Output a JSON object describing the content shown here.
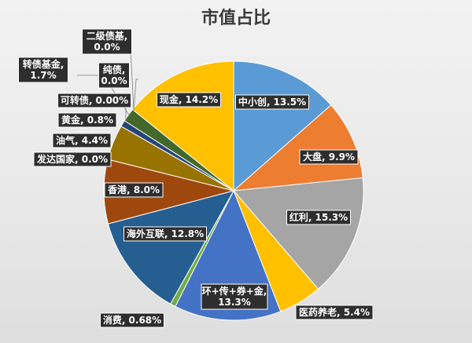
{
  "chart_data": {
    "type": "pie",
    "title": "市值占比",
    "slices": [
      {
        "name": "中小创",
        "label": "中小创, 13.5%",
        "value": 13.5,
        "color": "#5b9bd5"
      },
      {
        "name": "大盘",
        "label": "大盘, 9.9%",
        "value": 9.9,
        "color": "#ed7d31"
      },
      {
        "name": "红利",
        "label": "红利, 15.3%",
        "value": 15.3,
        "color": "#a5a5a5"
      },
      {
        "name": "医药养老",
        "label": "医药养老, 5.4%",
        "value": 5.4,
        "color": "#ffc000"
      },
      {
        "name": "环+传+券+金",
        "label": [
          "环+传+券+金,",
          "13.3%"
        ],
        "value": 13.3,
        "color": "#4472c4"
      },
      {
        "name": "消费",
        "label": "消费, 0.68%",
        "value": 0.68,
        "color": "#70ad47"
      },
      {
        "name": "海外互联",
        "label": "海外互联, 12.8%",
        "value": 12.8,
        "color": "#255e91"
      },
      {
        "name": "香港",
        "label": "香港, 8.0%",
        "value": 8.0,
        "color": "#9e480e"
      },
      {
        "name": "发达国家",
        "label": "发达国家, 0.0%",
        "value": 0.0,
        "color": "#636363"
      },
      {
        "name": "油气",
        "label": "油气, 4.4%",
        "value": 4.4,
        "color": "#997300"
      },
      {
        "name": "黄金",
        "label": "黄金, 0.8%",
        "value": 0.8,
        "color": "#264478"
      },
      {
        "name": "可转债",
        "label": "可转债, 0.00%",
        "value": 0.0,
        "color": "#43682b"
      },
      {
        "name": "转债基金",
        "label": [
          "转债基金,",
          "1.7%"
        ],
        "value": 1.7,
        "color": "#43682b"
      },
      {
        "name": "纯债",
        "label": [
          "纯债,",
          "0.0%"
        ],
        "value": 0.0,
        "color": "#7cafdd"
      },
      {
        "name": "二级债基",
        "label": [
          "二级债基,",
          "0.0%"
        ],
        "value": 0.0,
        "color": "#f1975a"
      },
      {
        "name": "现金",
        "label": "现金, 14.2%",
        "value": 14.2,
        "color": "#ffc000"
      }
    ]
  }
}
